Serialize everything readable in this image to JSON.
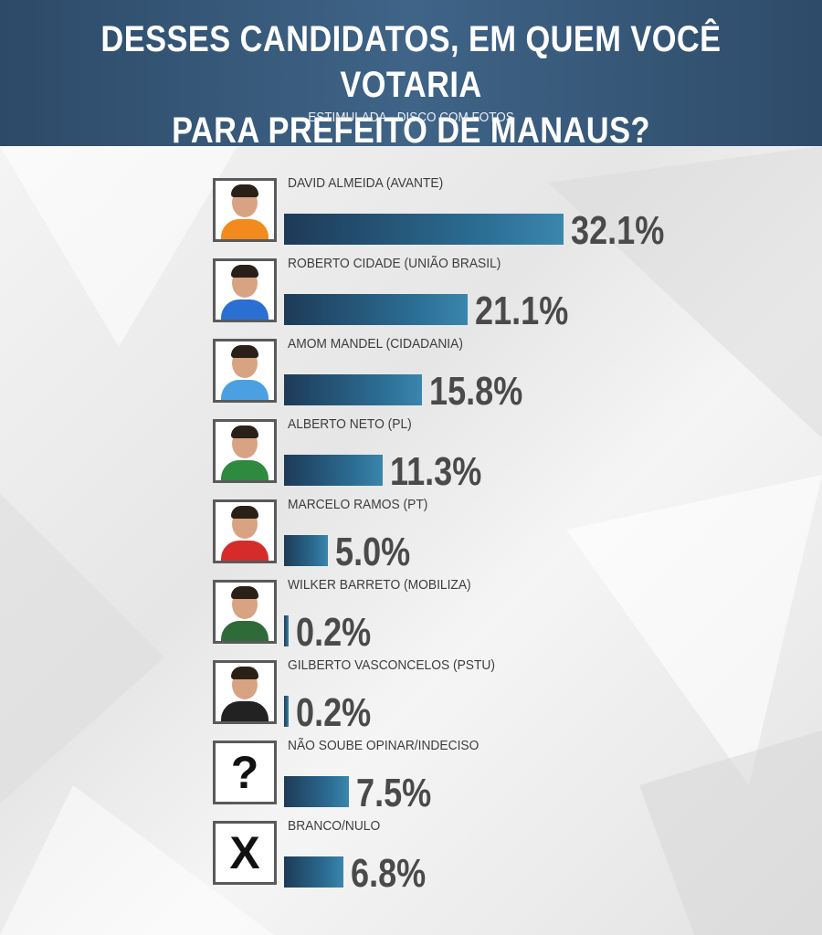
{
  "header": {
    "title_line1": "DESSES CANDIDATOS, EM QUEM VOCÊ VOTARIA",
    "title_line2": "PARA PREFEITO DE MANAUS?",
    "subtitle": "ESTIMULADA - DISCO COM FOTOS"
  },
  "colors": {
    "header_bg": "#35577a",
    "bar_start": "#1e3a57",
    "bar_end": "#3a86ad",
    "value_text": "#4a4a4a"
  },
  "chart_data": {
    "type": "bar",
    "orientation": "horizontal",
    "categories": [
      "DAVID ALMEIDA (AVANTE)",
      "ROBERTO CIDADE (UNIÃO BRASIL)",
      "AMOM MANDEL (CIDADANIA)",
      "ALBERTO NETO (PL)",
      "MARCELO RAMOS (PT)",
      "WILKER BARRETO (MOBILIZA)",
      "GILBERTO VASCONCELOS (PSTU)",
      "NÃO SOUBE OPINAR/INDECISO",
      "BRANCO/NULO"
    ],
    "values": [
      32.1,
      21.1,
      15.8,
      11.3,
      5.0,
      0.2,
      0.2,
      7.5,
      6.8
    ],
    "value_labels": [
      "32.1%",
      "21.1%",
      "15.8%",
      "11.3%",
      "5.0%",
      "0.2%",
      "0.2%",
      "7.5%",
      "6.8%"
    ],
    "unit": "%",
    "icons": [
      "photo-icon",
      "photo-icon",
      "photo-icon",
      "photo-icon",
      "photo-icon",
      "photo-icon",
      "photo-icon",
      "question-mark-icon",
      "x-mark-icon"
    ],
    "icon_glyphs": [
      "",
      "",
      "",
      "",
      "",
      "",
      "",
      "?",
      "X"
    ],
    "shirt_colors": [
      "#f28a1e",
      "#2a6fd1",
      "#4aa0e0",
      "#2d8a3e",
      "#d62b2b",
      "#2e6b38",
      "#222222",
      "",
      ""
    ],
    "grid": false,
    "legend": "none"
  }
}
